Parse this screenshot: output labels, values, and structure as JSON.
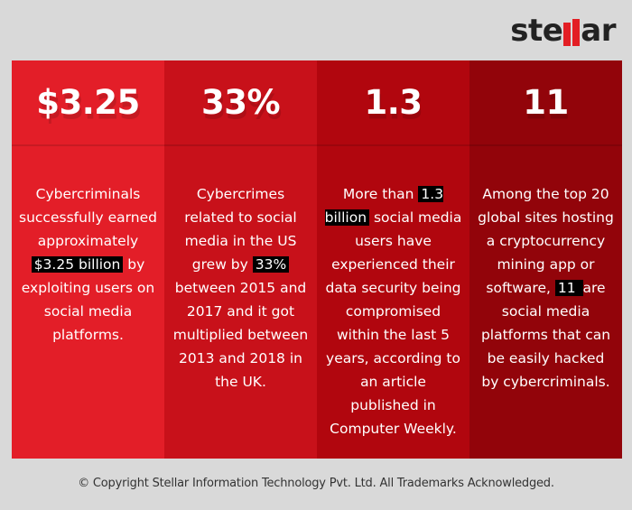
{
  "brand": {
    "logo_prefix": "ste",
    "logo_suffix": "ar",
    "accent": "#e31e24"
  },
  "colors": {
    "col1": "#e31e28",
    "col2": "#c8111a",
    "col3": "#b1060e",
    "col4": "#92040a",
    "background": "#d9d9d9"
  },
  "stats": [
    {
      "value": "$3.25",
      "text_before": "Cybercriminals successfully earned approximately ",
      "highlight": "$3.25 billion",
      "text_after": " by exploiting users on social media platforms."
    },
    {
      "value": "33%",
      "text_before": "Cybercrimes related to social media in the US grew by ",
      "highlight": "33% ",
      "text_after": " between 2015 and 2017 and it got multiplied between 2013 and 2018 in the UK."
    },
    {
      "value": "1.3",
      "text_before": "More than ",
      "highlight": "1.3 billion",
      "text_after": " social media users have experienced their data security being compromised within the last 5 years, according to an article published in Computer Weekly."
    },
    {
      "value": "11",
      "text_before": "Among the top 20 global sites hosting a cryptocurrency mining app or software, ",
      "highlight": "11 ",
      "text_after": "are social media platforms that can be easily hacked by cybercriminals."
    }
  ],
  "footer": {
    "copyright": "© Copyright Stellar Information Technology Pvt. Ltd. All Trademarks Acknowledged."
  }
}
